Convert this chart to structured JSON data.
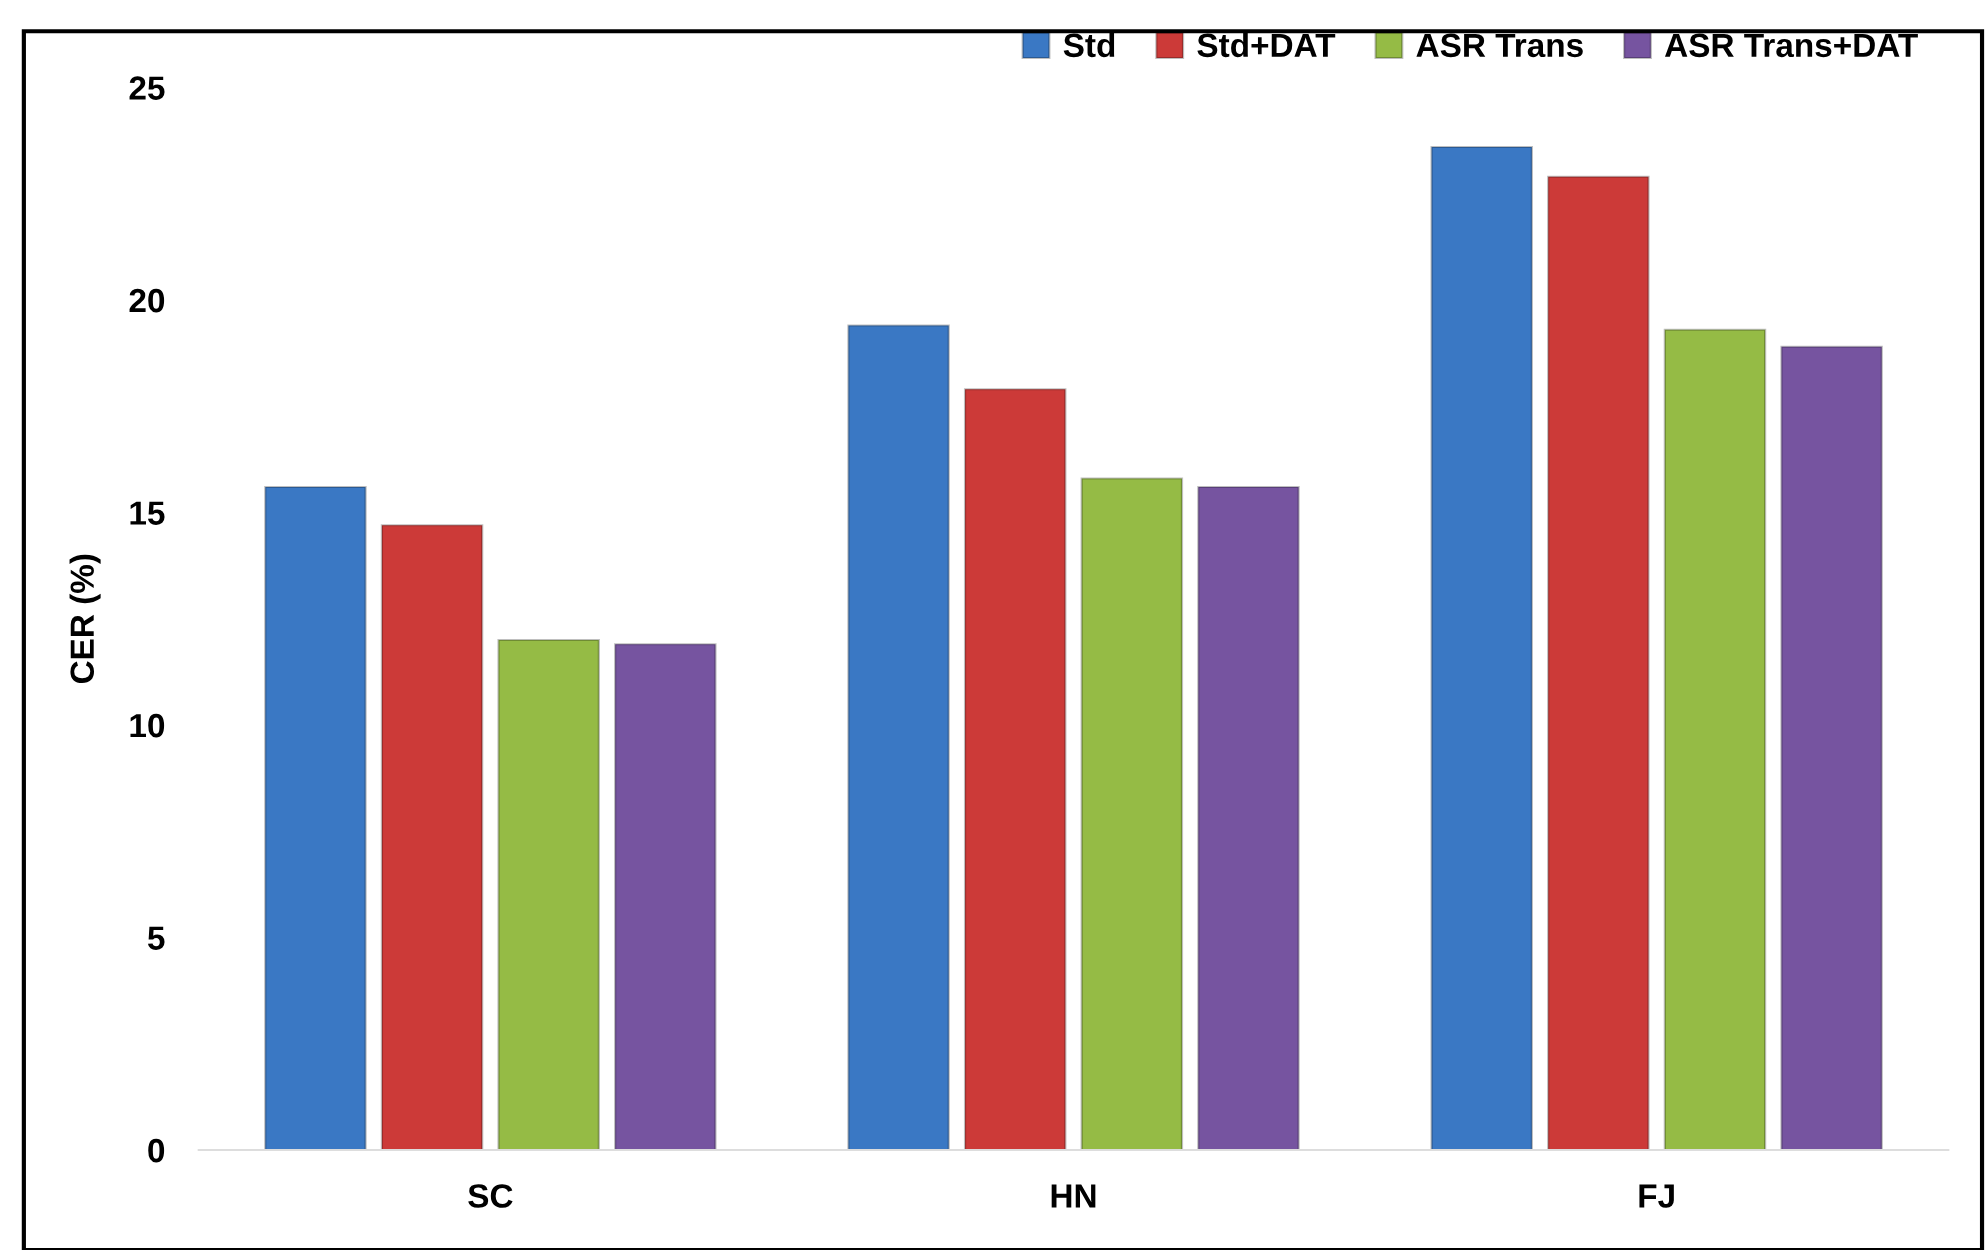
{
  "chart_data": {
    "type": "bar",
    "ylabel": "CER (%)",
    "categories": [
      "SC",
      "HN",
      "FJ"
    ],
    "series": [
      {
        "name": "Std",
        "color": "#3a78c4",
        "values": [
          15.6,
          19.4,
          23.6
        ]
      },
      {
        "name": "Std+DAT",
        "color": "#cc3a38",
        "values": [
          14.7,
          17.9,
          22.9
        ]
      },
      {
        "name": "ASR Trans",
        "color": "#95bb45",
        "values": [
          12.0,
          15.8,
          19.3
        ]
      },
      {
        "name": "ASR Trans+DAT",
        "color": "#7654a0",
        "values": [
          11.9,
          15.6,
          18.9
        ]
      }
    ],
    "ylim": [
      0,
      25
    ],
    "yticks": [
      0,
      5,
      10,
      15,
      20,
      25
    ],
    "grid": false,
    "legend": "top right"
  }
}
